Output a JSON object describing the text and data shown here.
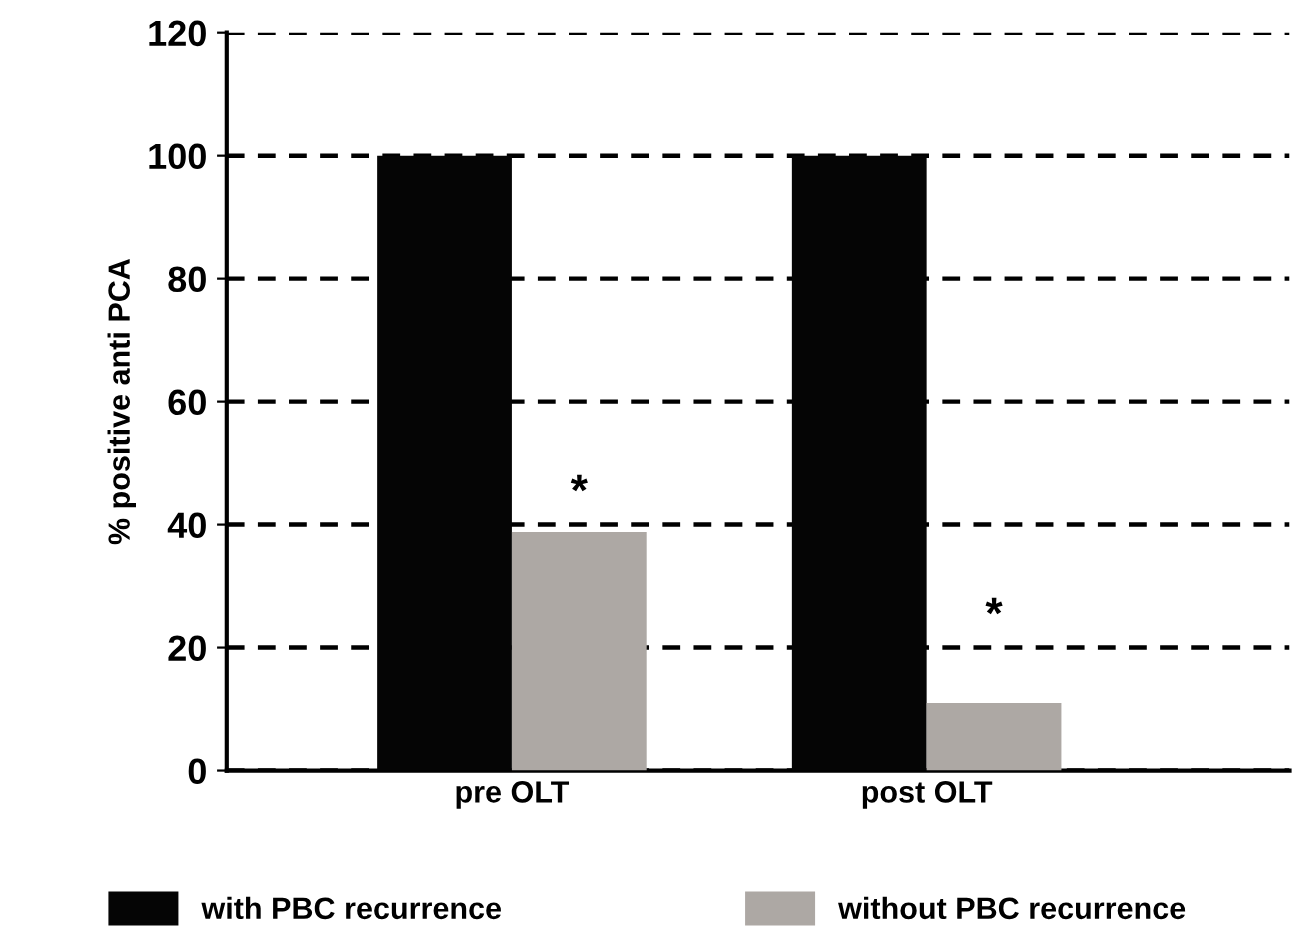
{
  "chart_data": {
    "type": "bar",
    "ylabel": "% positive anti PCA",
    "categories": [
      "pre OLT",
      "post OLT"
    ],
    "series": [
      {
        "name": "with PBC recurrence",
        "color": "#050505",
        "values": [
          100,
          100
        ]
      },
      {
        "name": "without PBC recurrence",
        "color": "#ada8a4",
        "values": [
          38.8,
          11
        ]
      }
    ],
    "ylim": [
      0,
      120
    ],
    "yticks": [
      0,
      20,
      40,
      60,
      80,
      100,
      120
    ],
    "grid": "y",
    "legend": "bottom",
    "annotations": [
      {
        "text": "*",
        "x": "pre OLT",
        "y": 45
      },
      {
        "text": "*",
        "x": "post OLT",
        "y": 25
      }
    ]
  }
}
